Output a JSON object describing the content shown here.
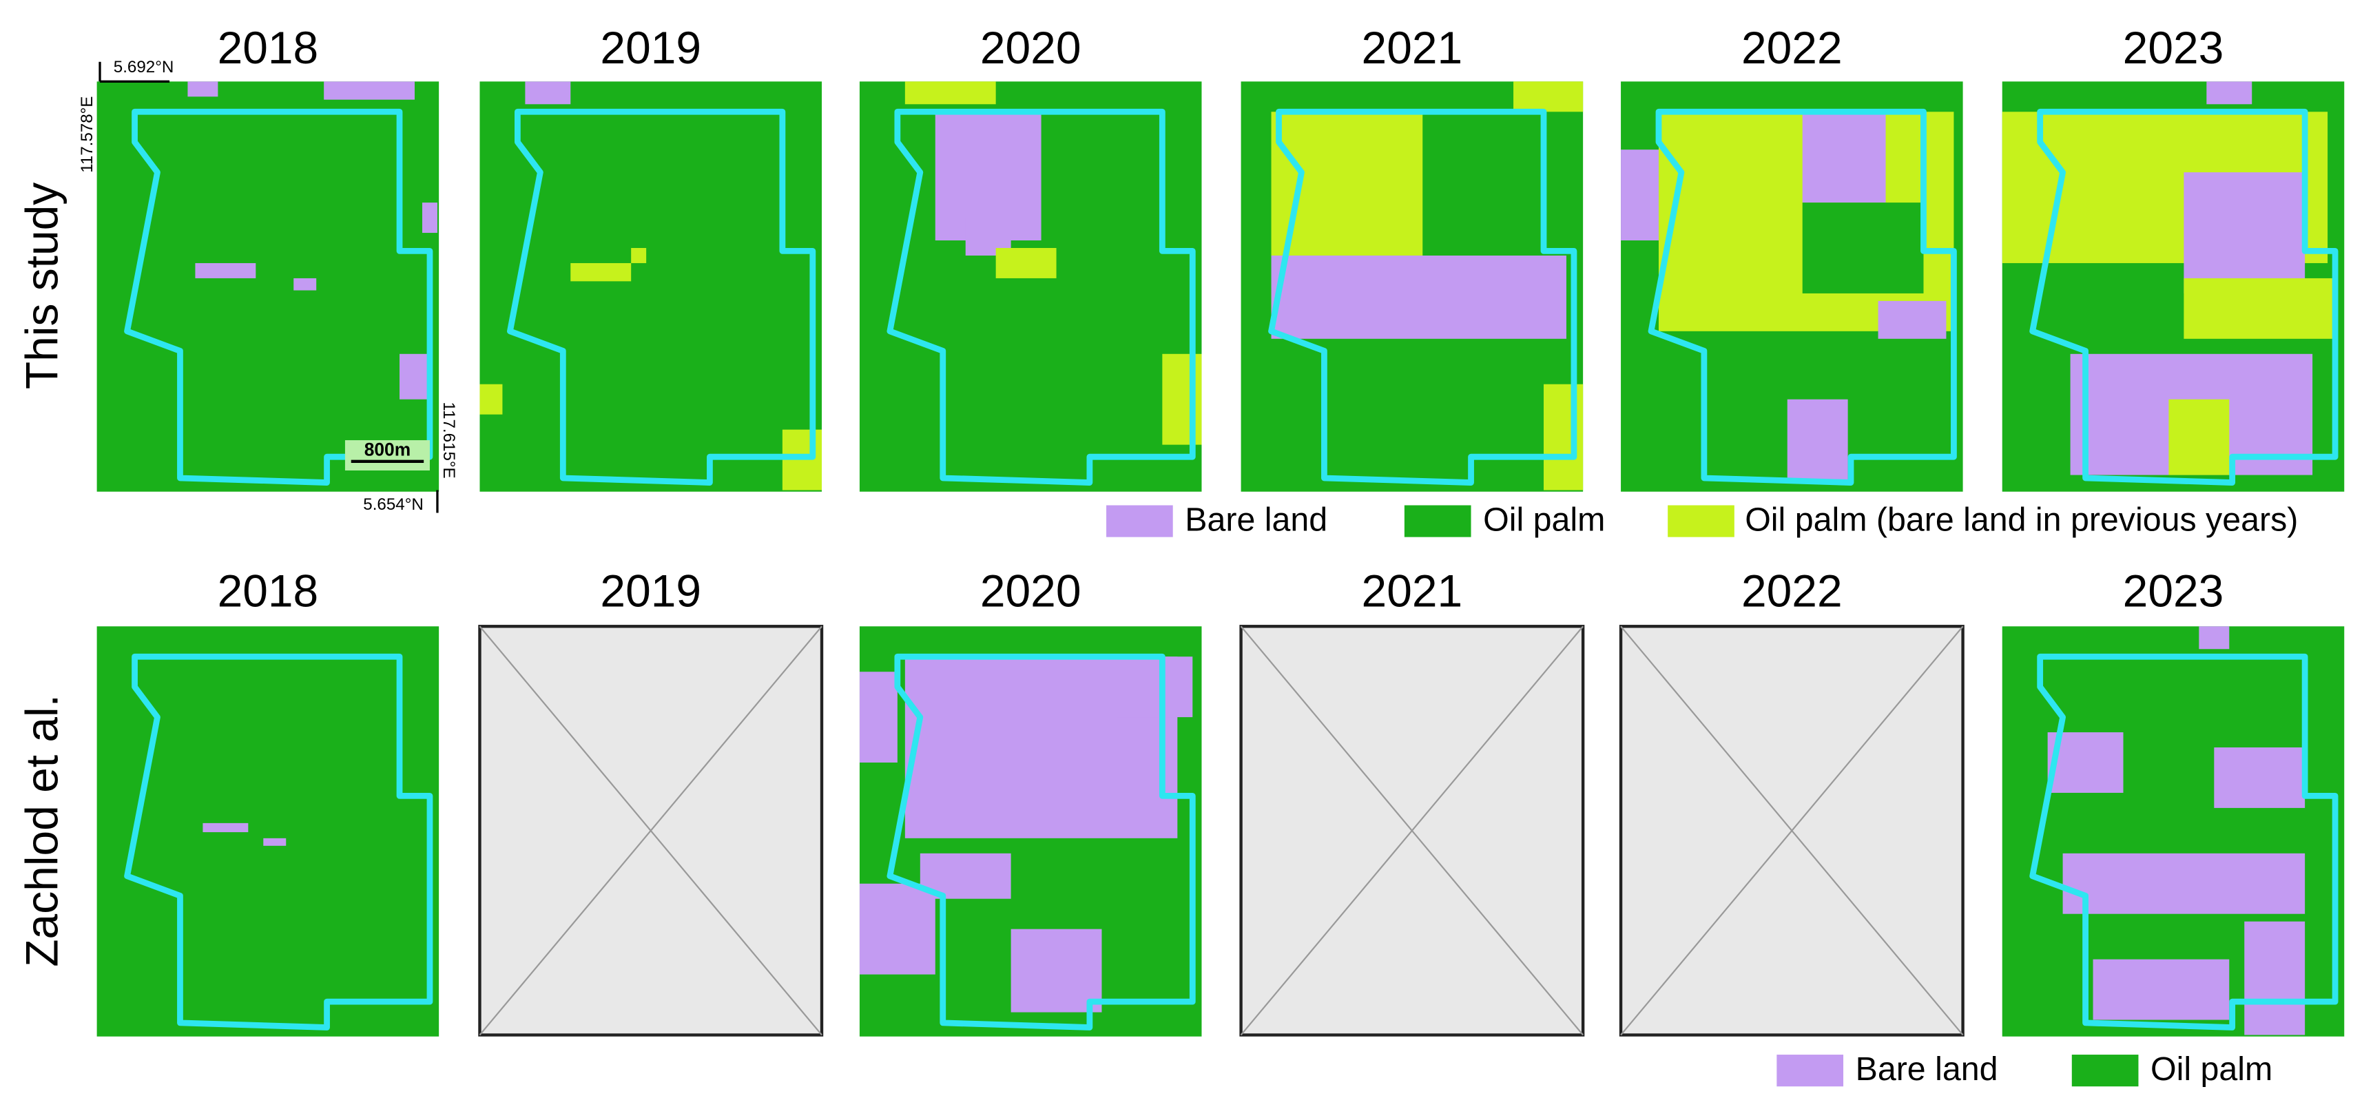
{
  "rows": [
    {
      "label": "This study",
      "years": [
        "2018",
        "2019",
        "2020",
        "2021",
        "2022",
        "2023"
      ]
    },
    {
      "label": "Zachlod et al.",
      "years": [
        "2018",
        "2019",
        "2020",
        "2021",
        "2022",
        "2023"
      ]
    }
  ],
  "legend_this_study": [
    "Bare land",
    "Oil palm",
    "Oil palm (bare land in previous years)"
  ],
  "legend_zachlod": [
    "Bare land",
    "Oil palm"
  ],
  "coordinates": {
    "top_left_lat": "5.692°N",
    "top_left_lon": "117.578°E",
    "bottom_right_lon": "117.615°E",
    "bottom_right_lat": "5.654°N"
  },
  "scale_bar": "800m"
}
